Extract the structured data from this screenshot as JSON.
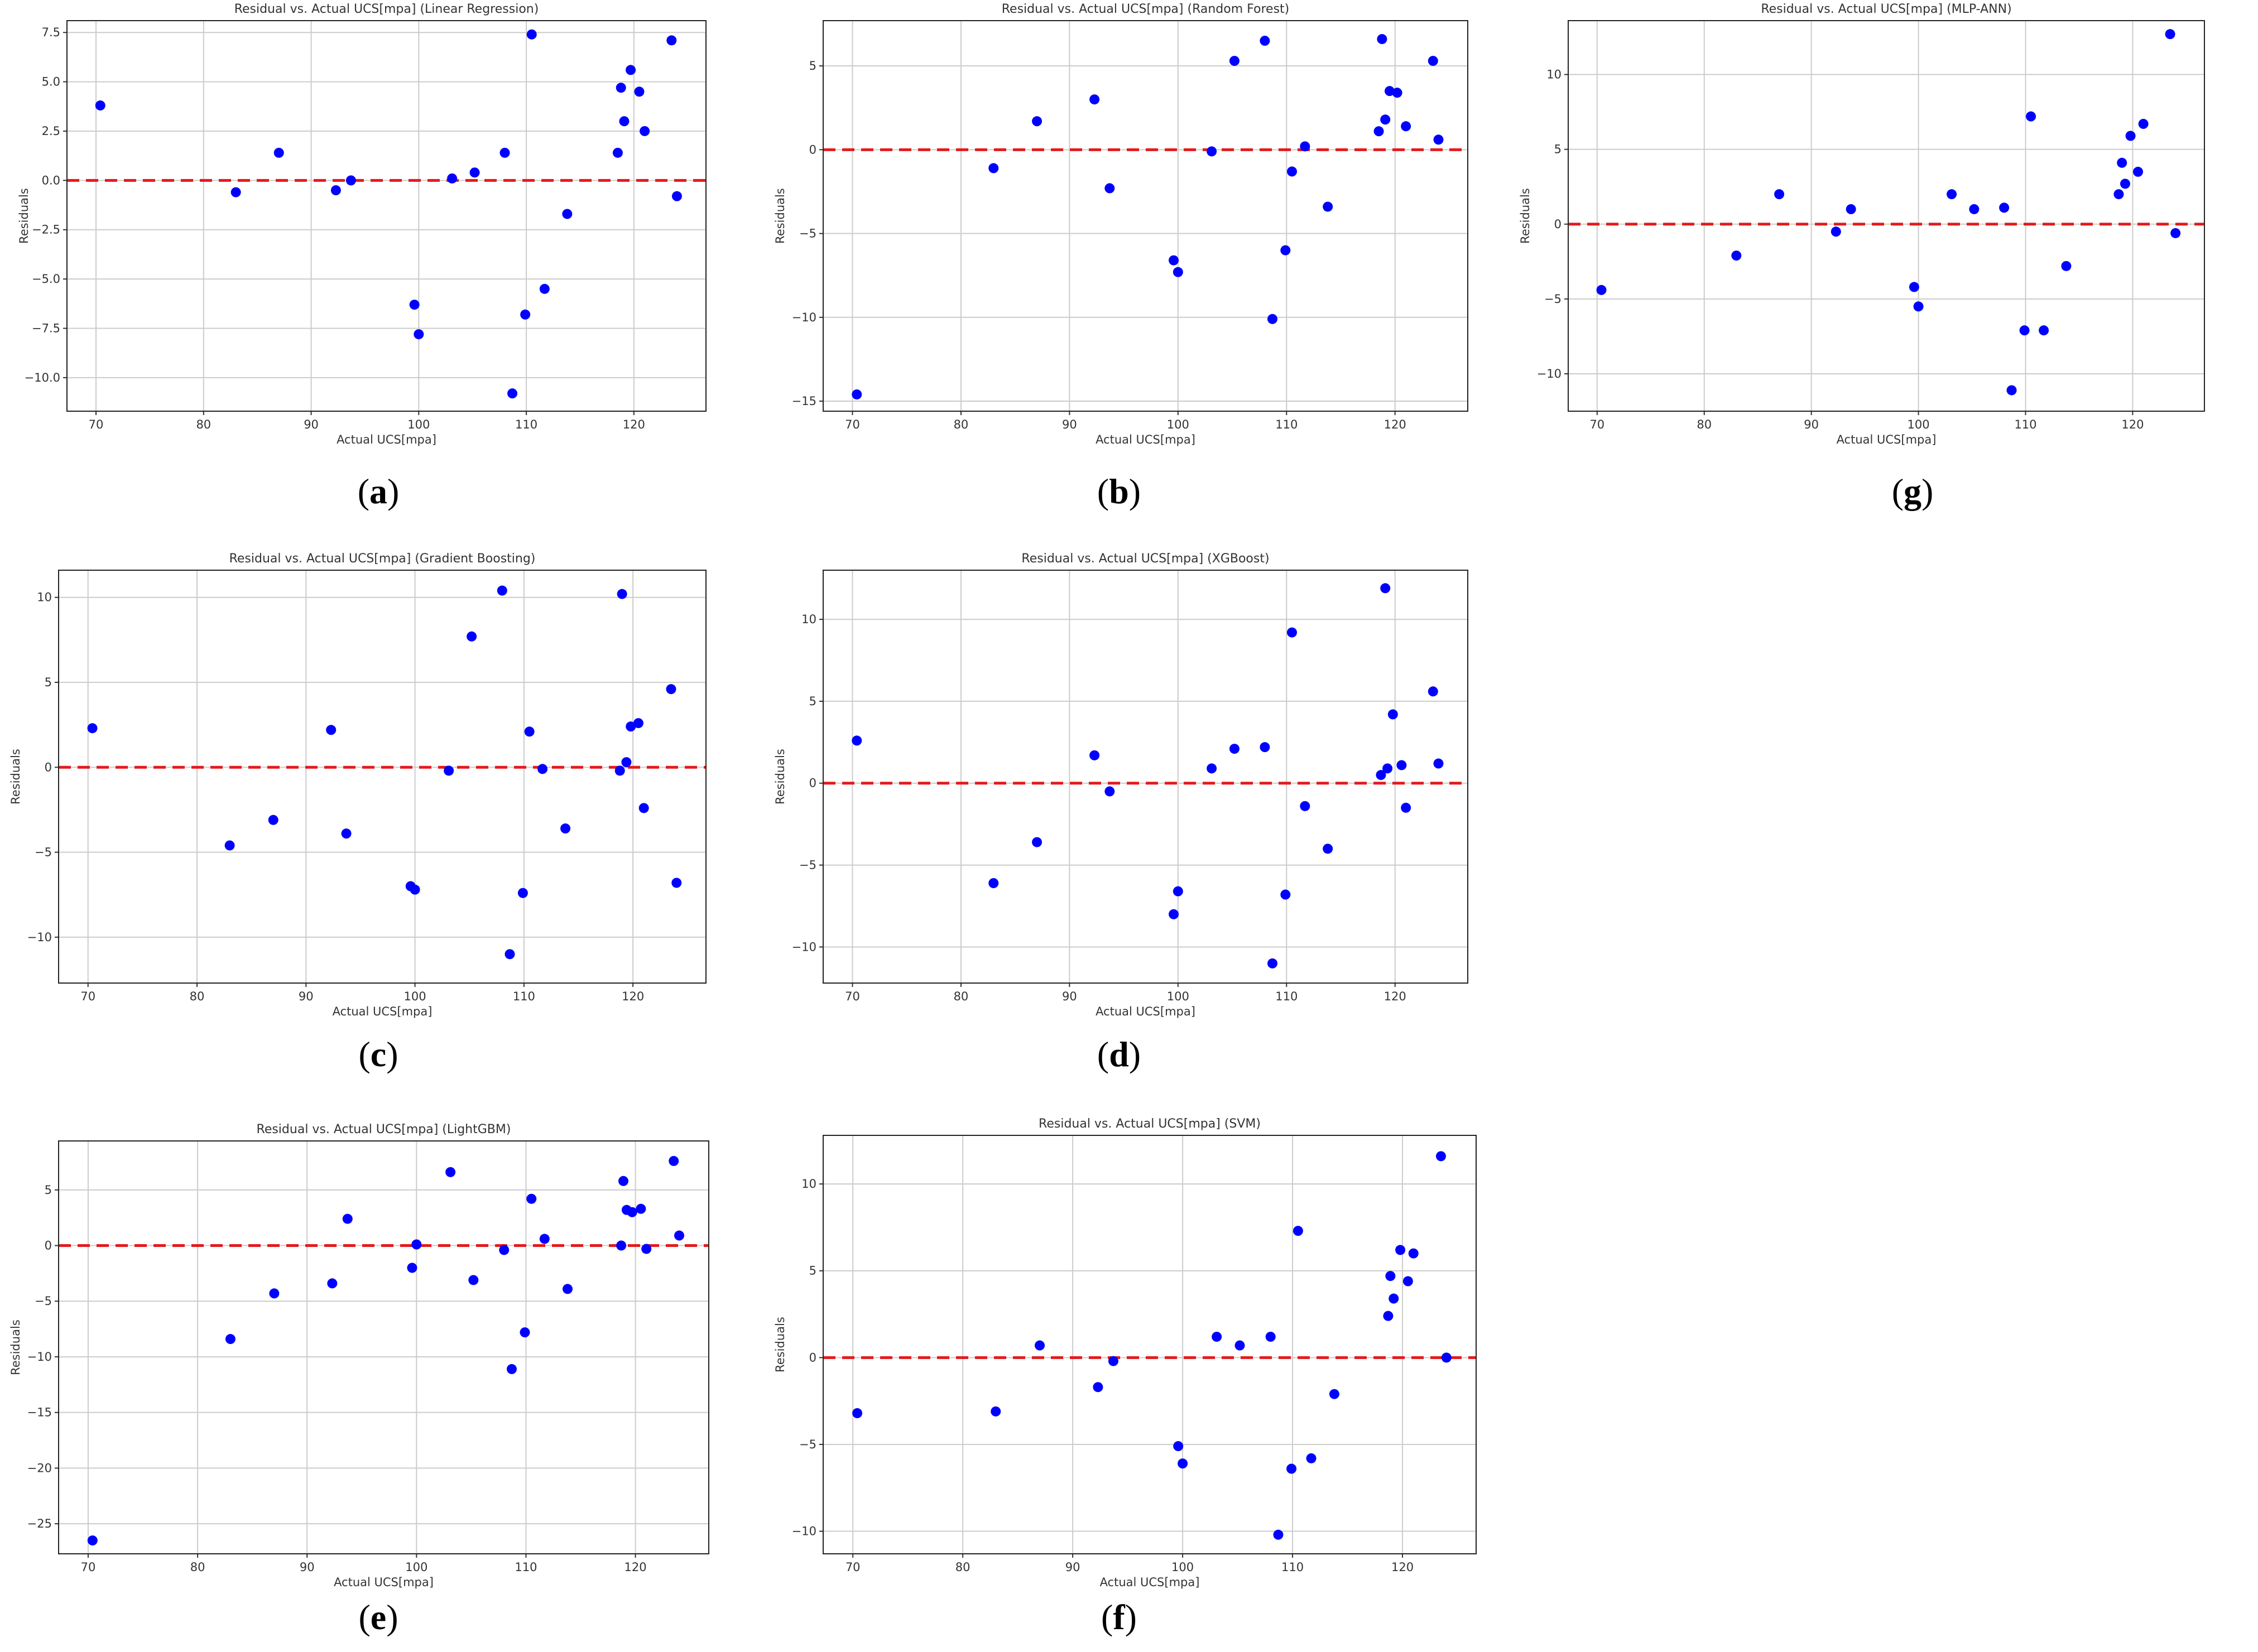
{
  "caption_style": {
    "paren_open": "(",
    "paren_close": ")"
  },
  "colors": {
    "points": "#0000ff",
    "zero_line": "#e41a1c",
    "grid": "#cccccc"
  },
  "chart_data": [
    {
      "id": "a",
      "caption": "a",
      "type": "scatter",
      "title": "Residual vs. Actual UCS[mpa] (Linear Regression)",
      "xlabel": "Actual UCS[mpa]",
      "ylabel": "Residuals",
      "xlim": [
        67.3,
        126.7
      ],
      "ylim": [
        -11.7,
        8.1
      ],
      "xticks": [
        70,
        80,
        90,
        100,
        110,
        120
      ],
      "yticks": [
        -10.0,
        -7.5,
        -5.0,
        -2.5,
        0.0,
        2.5,
        5.0,
        7.5
      ],
      "ytick_labels": [
        "−10.0",
        "−7.5",
        "−5.0",
        "−2.5",
        "0.0",
        "2.5",
        "5.0",
        "7.5"
      ],
      "reference_line": 0,
      "points": [
        [
          70.4,
          3.8
        ],
        [
          83.0,
          -0.6
        ],
        [
          87.0,
          1.4
        ],
        [
          92.3,
          -0.5
        ],
        [
          93.7,
          0.0
        ],
        [
          99.6,
          -6.3
        ],
        [
          100.0,
          -7.8
        ],
        [
          103.1,
          0.1
        ],
        [
          105.2,
          0.4
        ],
        [
          108.0,
          1.4
        ],
        [
          108.7,
          -10.8
        ],
        [
          109.9,
          -6.8
        ],
        [
          110.5,
          7.4
        ],
        [
          111.7,
          -5.5
        ],
        [
          113.8,
          -1.7
        ],
        [
          118.5,
          1.4
        ],
        [
          118.8,
          4.7
        ],
        [
          119.1,
          3.0
        ],
        [
          119.7,
          5.6
        ],
        [
          120.5,
          4.5
        ],
        [
          121.0,
          2.5
        ],
        [
          123.5,
          7.1
        ],
        [
          124.0,
          -0.8
        ]
      ]
    },
    {
      "id": "b",
      "caption": "b",
      "type": "scatter",
      "title": "Residual vs. Actual UCS[mpa] (Random Forest)",
      "xlabel": "Actual UCS[mpa]",
      "ylabel": "Residuals",
      "xlim": [
        67.3,
        126.7
      ],
      "ylim": [
        -15.6,
        7.7
      ],
      "xticks": [
        70,
        80,
        90,
        100,
        110,
        120
      ],
      "yticks": [
        -15,
        -10,
        -5,
        0,
        5
      ],
      "ytick_labels": [
        "−15",
        "−10",
        "−5",
        "0",
        "5"
      ],
      "reference_line": 0,
      "points": [
        [
          70.4,
          -14.6
        ],
        [
          83.0,
          -1.1
        ],
        [
          87.0,
          1.7
        ],
        [
          92.3,
          3.0
        ],
        [
          93.7,
          -2.3
        ],
        [
          99.6,
          -6.6
        ],
        [
          100.0,
          -7.3
        ],
        [
          103.1,
          -0.1
        ],
        [
          105.2,
          5.3
        ],
        [
          108.0,
          6.5
        ],
        [
          108.7,
          -10.1
        ],
        [
          109.9,
          -6.0
        ],
        [
          110.5,
          -1.3
        ],
        [
          111.7,
          0.2
        ],
        [
          113.8,
          -3.4
        ],
        [
          118.5,
          1.1
        ],
        [
          118.8,
          6.6
        ],
        [
          119.1,
          1.8
        ],
        [
          119.5,
          3.5
        ],
        [
          120.2,
          3.4
        ],
        [
          121.0,
          1.4
        ],
        [
          123.5,
          5.3
        ],
        [
          124.0,
          0.6
        ]
      ]
    },
    {
      "id": "g",
      "caption": "g",
      "type": "scatter",
      "title": "Residual vs. Actual UCS[mpa] (MLP-ANN)",
      "xlabel": "Actual UCS[mpa]",
      "ylabel": "Residuals",
      "xlim": [
        67.3,
        126.7
      ],
      "ylim": [
        -12.5,
        13.6
      ],
      "xticks": [
        70,
        80,
        90,
        100,
        110,
        120
      ],
      "yticks": [
        -10,
        -5,
        0,
        5,
        10
      ],
      "ytick_labels": [
        "−10",
        "−5",
        "0",
        "5",
        "10"
      ],
      "reference_line": 0,
      "points": [
        [
          70.4,
          -4.4
        ],
        [
          83.0,
          -2.1
        ],
        [
          87.0,
          2.0
        ],
        [
          92.3,
          -0.5
        ],
        [
          93.7,
          1.0
        ],
        [
          99.6,
          -4.2
        ],
        [
          100.0,
          -5.5
        ],
        [
          103.1,
          2.0
        ],
        [
          105.2,
          1.0
        ],
        [
          108.0,
          1.1
        ],
        [
          108.7,
          -11.1
        ],
        [
          109.9,
          -7.1
        ],
        [
          110.5,
          7.2
        ],
        [
          111.7,
          -7.1
        ],
        [
          113.8,
          -2.8
        ],
        [
          118.7,
          2.0
        ],
        [
          119.0,
          4.1
        ],
        [
          119.3,
          2.7
        ],
        [
          119.8,
          5.9
        ],
        [
          120.5,
          3.5
        ],
        [
          121.0,
          6.7
        ],
        [
          123.5,
          12.7
        ],
        [
          124.0,
          -0.6
        ]
      ]
    },
    {
      "id": "c",
      "caption": "c",
      "type": "scatter",
      "title": "Residual vs. Actual UCS[mpa] (Gradient Boosting)",
      "xlabel": "Actual UCS[mpa]",
      "ylabel": "Residuals",
      "xlim": [
        67.3,
        126.7
      ],
      "ylim": [
        -12.7,
        11.6
      ],
      "xticks": [
        70,
        80,
        90,
        100,
        110,
        120
      ],
      "yticks": [
        -10,
        -5,
        0,
        5,
        10
      ],
      "ytick_labels": [
        "−10",
        "−5",
        "0",
        "5",
        "10"
      ],
      "reference_line": 0,
      "points": [
        [
          70.4,
          2.3
        ],
        [
          83.0,
          -4.6
        ],
        [
          87.0,
          -3.1
        ],
        [
          92.3,
          2.2
        ],
        [
          93.7,
          -3.9
        ],
        [
          99.6,
          -7.0
        ],
        [
          100.0,
          -7.2
        ],
        [
          103.1,
          -0.2
        ],
        [
          105.2,
          7.7
        ],
        [
          108.0,
          10.4
        ],
        [
          108.7,
          -11.0
        ],
        [
          109.9,
          -7.4
        ],
        [
          110.5,
          2.1
        ],
        [
          111.7,
          -0.1
        ],
        [
          113.8,
          -3.6
        ],
        [
          118.8,
          -0.2
        ],
        [
          119.0,
          10.2
        ],
        [
          119.4,
          0.3
        ],
        [
          119.8,
          2.4
        ],
        [
          120.5,
          2.6
        ],
        [
          121.0,
          -2.4
        ],
        [
          123.5,
          4.6
        ],
        [
          124.0,
          -6.8
        ]
      ]
    },
    {
      "id": "d",
      "caption": "d",
      "type": "scatter",
      "title": "Residual vs. Actual UCS[mpa] (XGBoost)",
      "xlabel": "Actual UCS[mpa]",
      "ylabel": "Residuals",
      "xlim": [
        67.3,
        126.7
      ],
      "ylim": [
        -12.2,
        13.0
      ],
      "xticks": [
        70,
        80,
        90,
        100,
        110,
        120
      ],
      "yticks": [
        -10,
        -5,
        0,
        5,
        10
      ],
      "ytick_labels": [
        "−10",
        "−5",
        "0",
        "5",
        "10"
      ],
      "reference_line": 0,
      "points": [
        [
          70.4,
          2.6
        ],
        [
          83.0,
          -6.1
        ],
        [
          87.0,
          -3.6
        ],
        [
          92.3,
          1.7
        ],
        [
          93.7,
          -0.5
        ],
        [
          99.6,
          -8.0
        ],
        [
          100.0,
          -6.6
        ],
        [
          103.1,
          0.9
        ],
        [
          105.2,
          2.1
        ],
        [
          108.0,
          2.2
        ],
        [
          108.7,
          -11.0
        ],
        [
          109.9,
          -6.8
        ],
        [
          110.5,
          9.2
        ],
        [
          111.7,
          -1.4
        ],
        [
          113.8,
          -4.0
        ],
        [
          118.7,
          0.5
        ],
        [
          119.1,
          11.9
        ],
        [
          119.3,
          0.9
        ],
        [
          119.8,
          4.2
        ],
        [
          120.6,
          1.1
        ],
        [
          121.0,
          -1.5
        ],
        [
          123.5,
          5.6
        ],
        [
          124.0,
          1.2
        ]
      ]
    },
    {
      "id": "e",
      "caption": "e",
      "type": "scatter",
      "title": "Residual vs. Actual UCS[mpa] (LightGBM)",
      "xlabel": "Actual UCS[mpa]",
      "ylabel": "Residuals",
      "xlim": [
        67.3,
        126.7
      ],
      "ylim": [
        -27.7,
        9.4
      ],
      "xticks": [
        70,
        80,
        90,
        100,
        110,
        120
      ],
      "yticks": [
        -25,
        -20,
        -15,
        -10,
        -5,
        0,
        5
      ],
      "ytick_labels": [
        "−25",
        "−20",
        "−15",
        "−10",
        "−5",
        "0",
        "5"
      ],
      "reference_line": 0,
      "points": [
        [
          70.4,
          -26.5
        ],
        [
          83.0,
          -8.4
        ],
        [
          87.0,
          -4.3
        ],
        [
          92.3,
          -3.4
        ],
        [
          93.7,
          2.4
        ],
        [
          99.6,
          -2.0
        ],
        [
          100.0,
          0.1
        ],
        [
          103.1,
          6.6
        ],
        [
          105.2,
          -3.1
        ],
        [
          108.0,
          -0.4
        ],
        [
          108.7,
          -11.1
        ],
        [
          109.9,
          -7.8
        ],
        [
          110.5,
          4.2
        ],
        [
          111.7,
          0.6
        ],
        [
          113.8,
          -3.9
        ],
        [
          118.7,
          0.0
        ],
        [
          118.9,
          5.8
        ],
        [
          119.2,
          3.2
        ],
        [
          119.7,
          3.0
        ],
        [
          120.5,
          3.3
        ],
        [
          121.0,
          -0.3
        ],
        [
          123.5,
          7.6
        ],
        [
          124.0,
          0.9
        ]
      ]
    },
    {
      "id": "f",
      "caption": "f",
      "type": "scatter",
      "title": "Residual vs. Actual UCS[mpa] (SVM)",
      "xlabel": "Actual UCS[mpa]",
      "ylabel": "Residuals",
      "xlim": [
        67.3,
        126.7
      ],
      "ylim": [
        -11.3,
        12.8
      ],
      "xticks": [
        70,
        80,
        90,
        100,
        110,
        120
      ],
      "yticks": [
        -10,
        -5,
        0,
        5,
        10
      ],
      "ytick_labels": [
        "−10",
        "−5",
        "0",
        "5",
        "10"
      ],
      "reference_line": 0,
      "points": [
        [
          70.4,
          -3.2
        ],
        [
          83.0,
          -3.1
        ],
        [
          87.0,
          0.7
        ],
        [
          92.3,
          -1.7
        ],
        [
          93.7,
          -0.2
        ],
        [
          99.6,
          -5.1
        ],
        [
          100.0,
          -6.1
        ],
        [
          103.1,
          1.2
        ],
        [
          105.2,
          0.7
        ],
        [
          108.0,
          1.2
        ],
        [
          108.7,
          -10.2
        ],
        [
          109.9,
          -6.4
        ],
        [
          110.5,
          7.3
        ],
        [
          111.7,
          -5.8
        ],
        [
          113.8,
          -2.1
        ],
        [
          118.7,
          2.4
        ],
        [
          118.9,
          4.7
        ],
        [
          119.2,
          3.4
        ],
        [
          119.8,
          6.2
        ],
        [
          120.5,
          4.4
        ],
        [
          121.0,
          6.0
        ],
        [
          123.5,
          11.6
        ],
        [
          124.0,
          0.0
        ]
      ]
    }
  ]
}
